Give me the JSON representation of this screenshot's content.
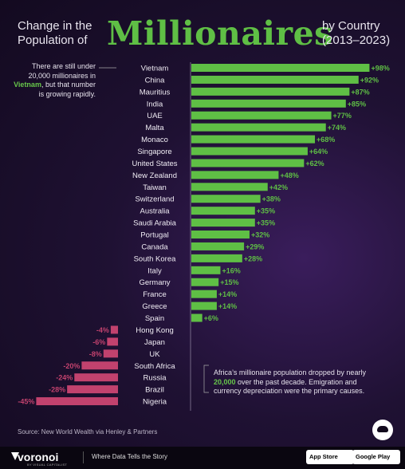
{
  "header": {
    "title_prefix": "Change in the",
    "title_prefix2": "Population of",
    "title_main": "Millionaires",
    "title_suffix": "by Country",
    "title_years": "(2013–2023)"
  },
  "annotations": {
    "left_pre": "There are still under 20,000 millionaires in ",
    "left_highlight": "Vietnam",
    "left_post": ", but that number is growing rapidly.",
    "right_pre": "Africa’s millionaire population dropped by nearly ",
    "right_highlight": "20,000",
    "right_post": " over the past decade. Emigration and currency depreciation were the primary causes."
  },
  "source": "Source: New World Wealth via Henley & Partners",
  "footer": {
    "brand": "voronoi",
    "brand_sub": "BY VISUAL CAPITALIST",
    "tagline": "Where Data Tells the Story",
    "app_store": "App Store",
    "google_play": "Google Play"
  },
  "colors": {
    "positive": "#5fbf45",
    "negative": "#c2426e",
    "background": "#1f1133"
  },
  "chart_data": {
    "type": "bar",
    "orientation": "horizontal",
    "categories": [
      "Vietnam",
      "China",
      "Mauritius",
      "India",
      "UAE",
      "Malta",
      "Monaco",
      "Singapore",
      "United States",
      "New Zealand",
      "Taiwan",
      "Switzerland",
      "Australia",
      "Saudi Arabia",
      "Portugal",
      "Canada",
      "South Korea",
      "Italy",
      "Germany",
      "France",
      "Greece",
      "Spain",
      "Hong Kong",
      "Japan",
      "UK",
      "South Africa",
      "Russia",
      "Brazil",
      "Nigeria"
    ],
    "values": [
      98,
      92,
      87,
      85,
      77,
      74,
      68,
      64,
      62,
      48,
      42,
      38,
      35,
      35,
      32,
      29,
      28,
      16,
      15,
      14,
      14,
      6,
      -4,
      -6,
      -8,
      -20,
      -24,
      -28,
      -45
    ],
    "labels": [
      "+98%",
      "+92%",
      "+87%",
      "+85%",
      "+77%",
      "+74%",
      "+68%",
      "+64%",
      "+62%",
      "+48%",
      "+42%",
      "+38%",
      "+35%",
      "+35%",
      "+32%",
      "+29%",
      "+28%",
      "+16%",
      "+15%",
      "+14%",
      "+14%",
      "+6%",
      "-4%",
      "-6%",
      "-8%",
      "-20%",
      "-24%",
      "-28%",
      "-45%"
    ],
    "unit": "%"
  }
}
